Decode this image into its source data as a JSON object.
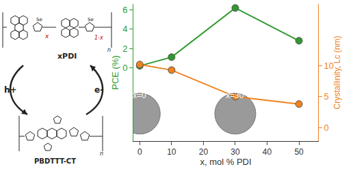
{
  "chart_data": {
    "type": "line",
    "x": [
      0,
      10,
      30,
      50
    ],
    "xlabel": "x, mol % PDI",
    "xlim": [
      -2,
      56
    ],
    "xticks": [
      0,
      10,
      20,
      30,
      40,
      50
    ],
    "ylabel": "PCE (%)",
    "ylim": [
      -7.6,
      6.6
    ],
    "yticks": [
      0,
      2,
      4,
      6
    ],
    "y2label": "Crystallinity, Lc (nm)",
    "y2lim": [
      -2.2,
      20
    ],
    "y2ticks": [
      0,
      5,
      10
    ],
    "grid": false,
    "series": [
      {
        "color": "#2e9a2e",
        "values": [
          0.2,
          1.1,
          6.2,
          2.8
        ],
        "marker": "circle"
      },
      {
        "color": "#f0821e",
        "values": [
          10.2,
          9.3,
          5.0,
          3.8
        ],
        "marker": "circle",
        "axis": "y2"
      }
    ],
    "annotations": [
      {
        "text": "x=0",
        "x": 0
      },
      {
        "text": "x=30",
        "x": 30
      }
    ]
  },
  "structures": {
    "top": {
      "labels": [
        "Se",
        "Se",
        "n"
      ],
      "x_label": "x",
      "one_minus_x_label": "1-x",
      "name": "xPDI"
    },
    "bottom": {
      "name": "PBDTTT-CT",
      "labels": [
        "n"
      ]
    },
    "arrows": [
      "h+",
      "e-"
    ]
  }
}
